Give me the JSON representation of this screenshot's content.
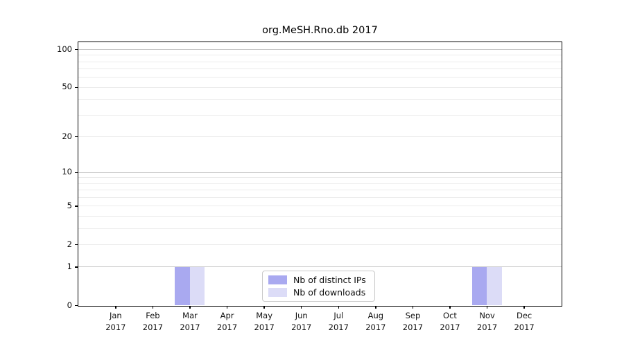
{
  "chart_data": {
    "type": "bar",
    "title": "org.MeSH.Rno.db 2017",
    "categories": [
      "Jan 2017",
      "Feb 2017",
      "Mar 2017",
      "Apr 2017",
      "May 2017",
      "Jun 2017",
      "Jul 2017",
      "Aug 2017",
      "Sep 2017",
      "Oct 2017",
      "Nov 2017",
      "Dec 2017"
    ],
    "series": [
      {
        "name": "Nb of distinct IPs",
        "color": "#a9a9f0",
        "values": [
          0,
          0,
          1,
          0,
          0,
          0,
          0,
          0,
          0,
          0,
          1,
          0
        ]
      },
      {
        "name": "Nb of downloads",
        "color": "#dcdcf7",
        "values": [
          0,
          0,
          1,
          0,
          0,
          0,
          0,
          0,
          0,
          0,
          1,
          0
        ]
      }
    ],
    "xlabel": "",
    "ylabel": "",
    "yscale": "log1p",
    "ylim": [
      0,
      114
    ],
    "yticks": [
      0,
      1,
      2,
      5,
      10,
      20,
      50,
      100
    ],
    "grid": {
      "major_values": [
        1,
        10,
        100
      ],
      "major_color": "#c6c6c6",
      "minor_values": [
        2,
        3,
        4,
        5,
        6,
        7,
        8,
        9,
        20,
        30,
        40,
        50,
        60,
        70,
        80,
        90
      ],
      "minor_color": "#ebebeb"
    },
    "legend": {
      "position": "bottom-center"
    },
    "bar_group_width_fraction": 0.8,
    "spine_color": "#000000"
  }
}
